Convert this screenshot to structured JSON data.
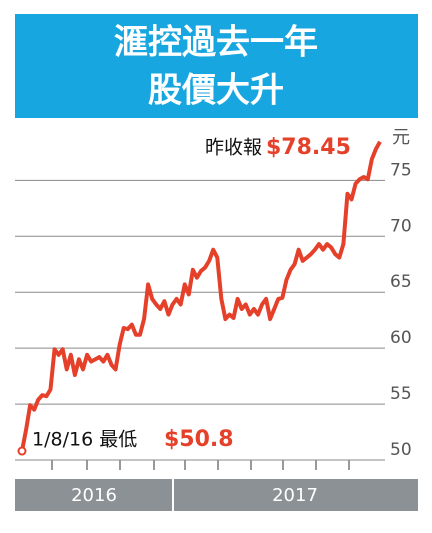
{
  "chart_data": {
    "type": "line",
    "title": [
      "滙控過去一年",
      "股價大升"
    ],
    "ylabel": "元",
    "x_labels": [
      "2016",
      "2017"
    ],
    "ylim": [
      50,
      79.5
    ],
    "yticks": [
      50,
      55,
      60,
      65,
      70,
      75
    ],
    "grid": true,
    "color": "#e5402a",
    "annotations": [
      "1/8/16 最低",
      "昨收報"
    ],
    "values": [
      50.8,
      52.7,
      54.9,
      54.5,
      55.4,
      55.8,
      55.7,
      56.3,
      59.9,
      59.4,
      59.9,
      58.1,
      59.4,
      57.6,
      59.0,
      58.1,
      59.4,
      58.8,
      59.0,
      59.2,
      58.8,
      59.4,
      58.5,
      58.1,
      60.3,
      61.8,
      61.7,
      62.1,
      61.2,
      61.2,
      62.6,
      65.7,
      64.4,
      63.9,
      63.5,
      64.2,
      63.0,
      63.9,
      64.4,
      63.9,
      65.7,
      64.8,
      67.0,
      66.3,
      66.9,
      67.2,
      67.8,
      68.8,
      68.1,
      64.4,
      62.6,
      63.0,
      62.7,
      64.4,
      63.5,
      63.9,
      63.0,
      63.5,
      63.0,
      63.9,
      64.4,
      62.6,
      63.5,
      64.4,
      64.5,
      66.1,
      67.0,
      67.5,
      68.8,
      67.8,
      68.1,
      68.4,
      68.8,
      69.3,
      68.8,
      69.3,
      69.0,
      68.4,
      68.1,
      69.3,
      73.8,
      73.3,
      74.7,
      75.1,
      75.3,
      75.1,
      76.9,
      77.8,
      78.45
    ],
    "value_labels": [
      "$50.8",
      null,
      null,
      null,
      null,
      null,
      null,
      null,
      null,
      null,
      null,
      null,
      null,
      null,
      null,
      null,
      null,
      null,
      null,
      null,
      null,
      null,
      null,
      null,
      null,
      null,
      null,
      null,
      null,
      null,
      null,
      null,
      null,
      null,
      null,
      null,
      null,
      null,
      null,
      null,
      null,
      null,
      null,
      null,
      null,
      null,
      null,
      null,
      null,
      null,
      null,
      null,
      null,
      null,
      null,
      null,
      null,
      null,
      null,
      null,
      null,
      null,
      null,
      null,
      null,
      null,
      null,
      null,
      null,
      null,
      null,
      null,
      null,
      null,
      null,
      null,
      null,
      null,
      null,
      null,
      null,
      null,
      null,
      null,
      null,
      null,
      null,
      null,
      "$78.45"
    ]
  }
}
